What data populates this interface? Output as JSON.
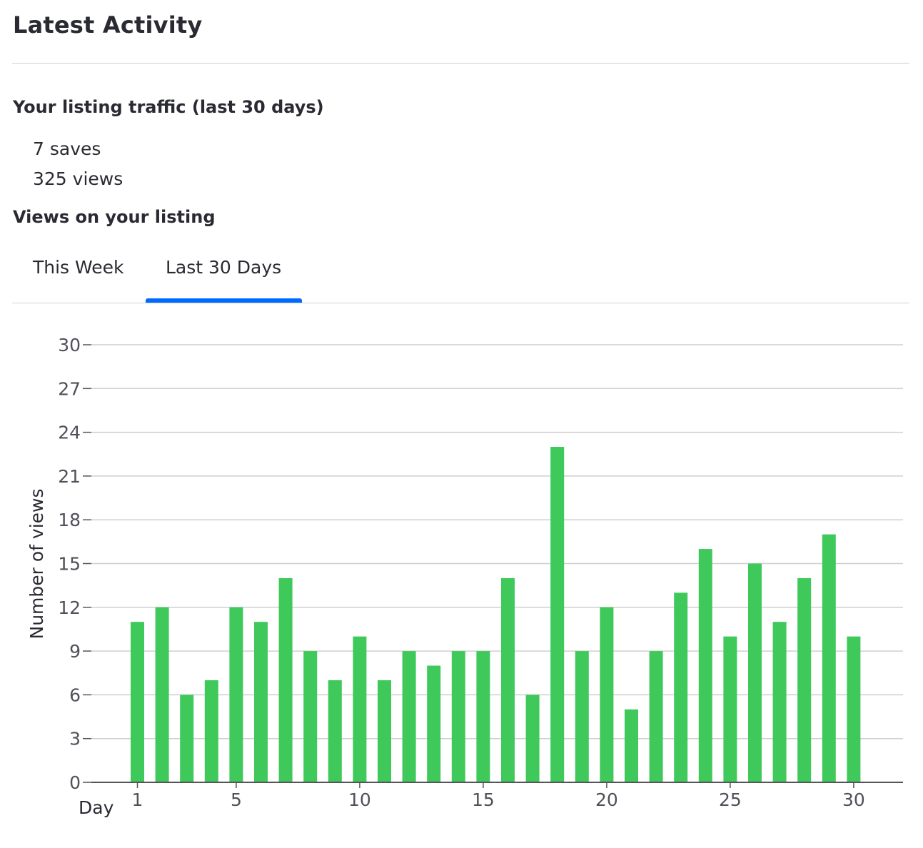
{
  "header": {
    "title": "Latest Activity"
  },
  "traffic": {
    "heading": "Your listing traffic (last 30 days)",
    "saves": "7 saves",
    "views": "325 views"
  },
  "views_section": {
    "heading": "Views on your listing"
  },
  "tabs": [
    {
      "label": "This Week",
      "active": false
    },
    {
      "label": "Last 30 Days",
      "active": true
    }
  ],
  "colors": {
    "bar": "#3fc95b",
    "tab_active": "#006aff",
    "grid": "#cfcfcf",
    "axis": "#555555"
  },
  "chart_data": {
    "type": "bar",
    "title": "",
    "xlabel": "Day",
    "ylabel": "Number of views",
    "categories": [
      1,
      2,
      3,
      4,
      5,
      6,
      7,
      8,
      9,
      10,
      11,
      12,
      13,
      14,
      15,
      16,
      17,
      18,
      19,
      20,
      21,
      22,
      23,
      24,
      25,
      26,
      27,
      28,
      29,
      30
    ],
    "values": [
      11,
      12,
      6,
      7,
      12,
      11,
      14,
      9,
      7,
      10,
      7,
      9,
      8,
      9,
      9,
      14,
      6,
      23,
      9,
      12,
      5,
      9,
      13,
      16,
      10,
      15,
      11,
      14,
      17,
      10
    ],
    "ylim": [
      0,
      30
    ],
    "yticks": [
      0,
      3,
      6,
      9,
      12,
      15,
      18,
      21,
      24,
      27,
      30
    ],
    "xticks": [
      1,
      5,
      10,
      15,
      20,
      25,
      30
    ],
    "grid": true
  }
}
